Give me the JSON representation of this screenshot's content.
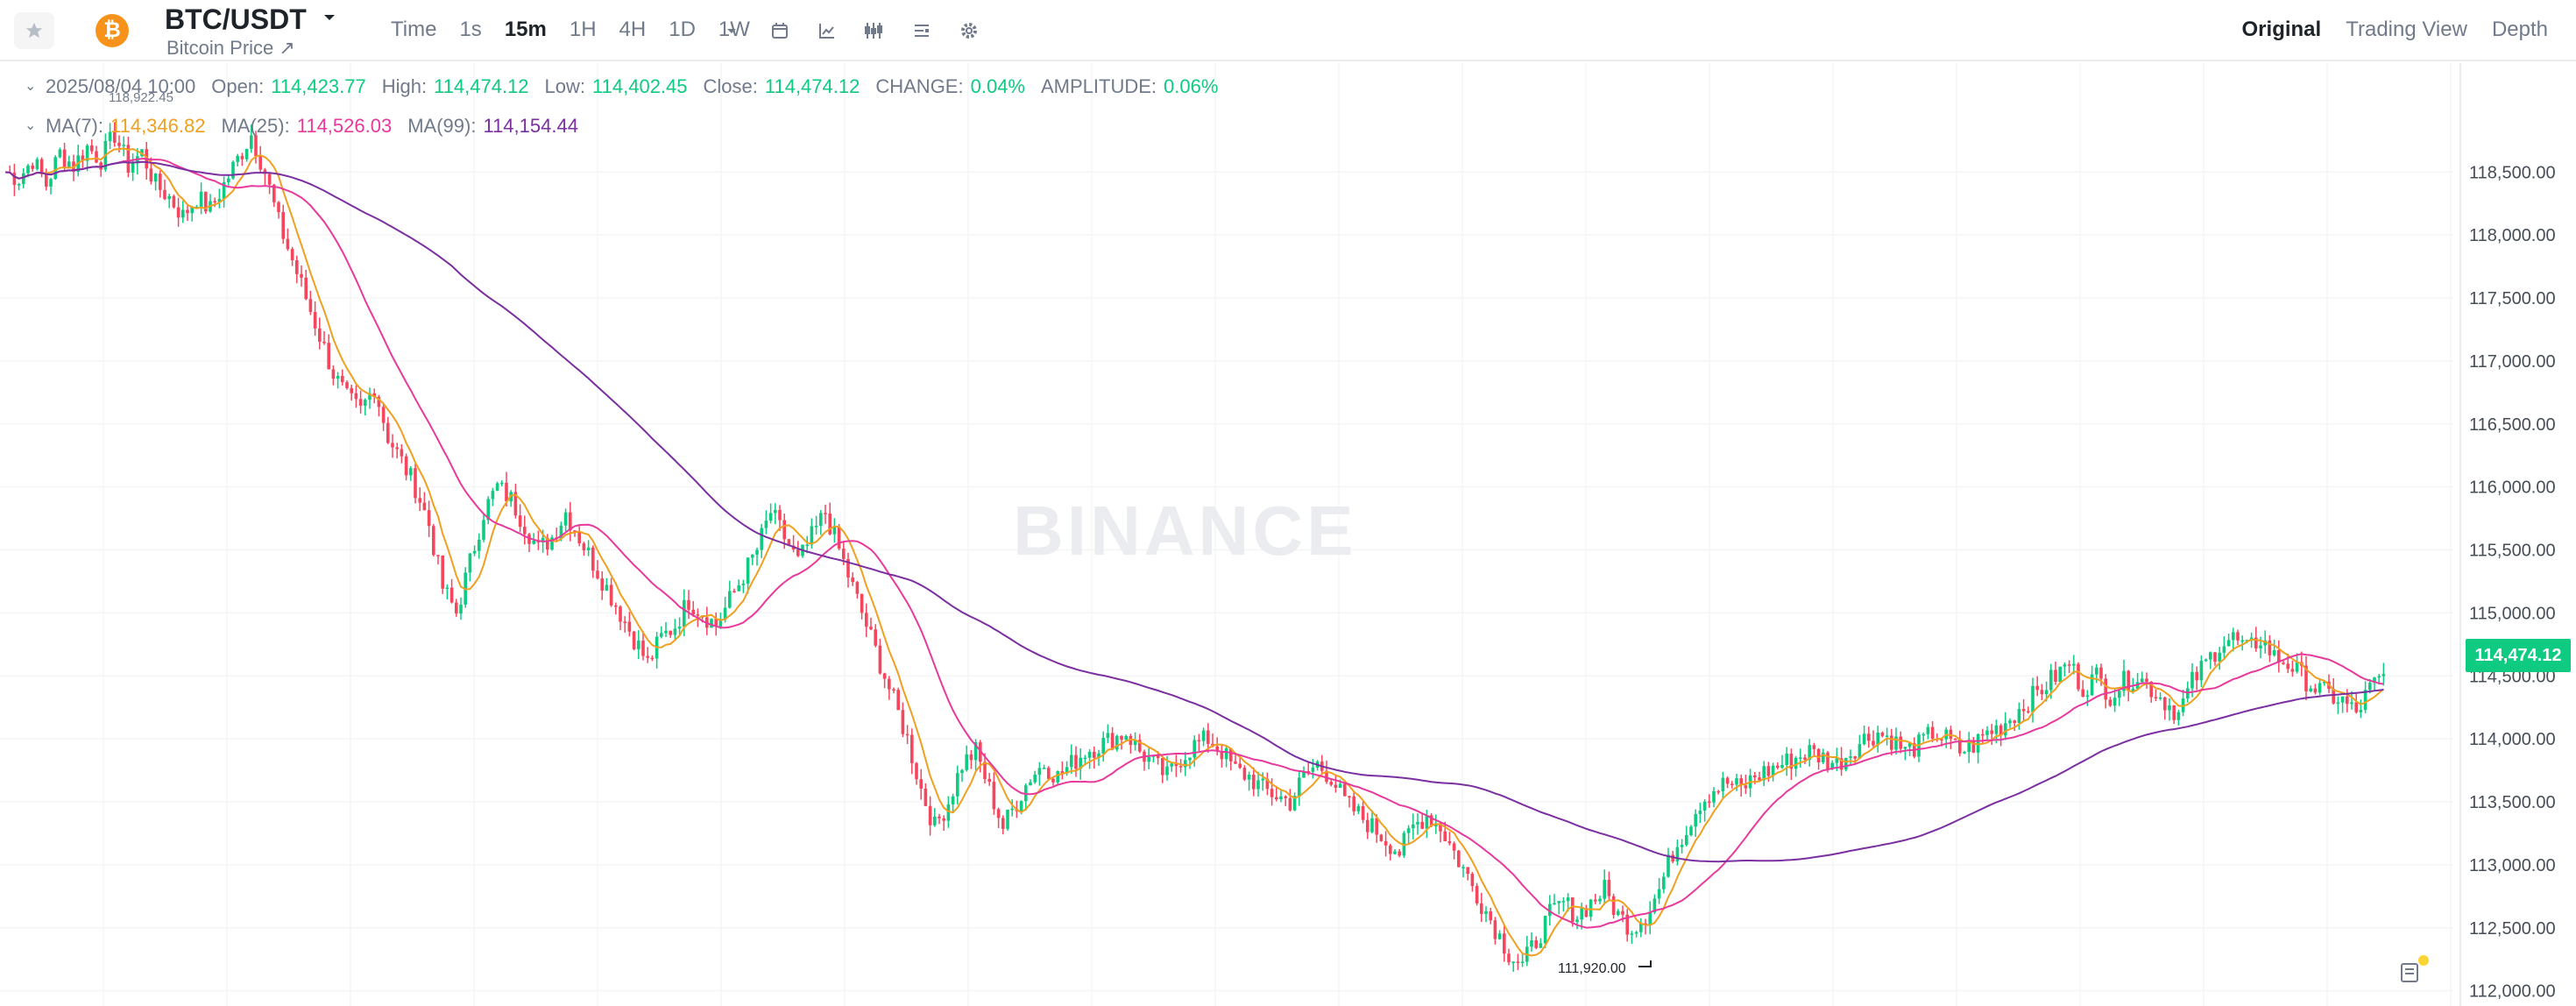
{
  "header": {
    "pair": "BTC/USDT",
    "subtitle": "Bitcoin Price ↗",
    "intervals": [
      "Time",
      "1s",
      "15m",
      "1H",
      "4H",
      "1D",
      "1W"
    ],
    "active_interval": "15m",
    "tool_icons": [
      "dropdown-caret-icon",
      "calendar-icon",
      "indicator-icon",
      "candle-type-icon",
      "layout-icon",
      "settings-icon"
    ],
    "views": [
      "Original",
      "Trading View",
      "Depth"
    ],
    "active_view": "Original"
  },
  "ohlc": {
    "time": "2025/08/04 10:00",
    "open_label": "Open:",
    "open": "114,423.77",
    "high_label": "High:",
    "high": "114,474.12",
    "low_label": "Low:",
    "low": "114,402.45",
    "close_label": "Close:",
    "close": "114,474.12",
    "change_label": "CHANGE:",
    "change": "0.04%",
    "amplitude_label": "AMPLITUDE:",
    "amplitude": "0.06%"
  },
  "ma": {
    "ma7_label": "MA(7):",
    "ma7": "114,346.82",
    "ma25_label": "MA(25):",
    "ma25": "114,526.03",
    "ma99_label": "MA(99):",
    "ma99": "114,154.44"
  },
  "watermark": "BINANCE",
  "current_price": "114,474.12",
  "high_marker": "118,922.45",
  "low_marker": "111,920.00",
  "colors": {
    "up": "#0ecb81",
    "down": "#f6465d",
    "ma7": "#f0a020",
    "ma25": "#e8399c",
    "ma99": "#7b2fa0",
    "coin": "#f7931a"
  },
  "chart_data": {
    "type": "candlestick",
    "ylim": [
      111900,
      119100
    ],
    "y_ticks": [
      118500,
      118000,
      117500,
      117000,
      116500,
      116000,
      115500,
      115000,
      114500,
      114000,
      113500,
      113000,
      112500,
      112000
    ],
    "y_tick_labels": [
      "118,500.00",
      "118,000.00",
      "117,500.00",
      "117,000.00",
      "116,500.00",
      "116,000.00",
      "115,500.00",
      "115,000.00",
      "114,500.00",
      "114,000.00",
      "113,500.00",
      "113,000.00",
      "112,500.00",
      "112,000.00"
    ],
    "close_path": [
      118500,
      118450,
      118600,
      118400,
      118650,
      118550,
      118700,
      118600,
      118800,
      118550,
      118650,
      118400,
      118300,
      118150,
      118300,
      118200,
      118400,
      118600,
      118800,
      118500,
      118100,
      117800,
      117500,
      117200,
      116900,
      116700,
      116600,
      116800,
      116400,
      116200,
      116000,
      115700,
      115200,
      115000,
      115400,
      115800,
      116000,
      115900,
      115700,
      115500,
      115600,
      115800,
      115600,
      115400,
      115200,
      115000,
      114800,
      114600,
      114800,
      114900,
      115100,
      115000,
      114900,
      115100,
      115300,
      115500,
      115800,
      115600,
      115400,
      115600,
      115800,
      115500,
      115200,
      114900,
      114600,
      114300,
      114000,
      113600,
      113300,
      113500,
      113800,
      113900,
      113600,
      113300,
      113500,
      113700,
      113800,
      113700,
      113800,
      113900,
      113950,
      114000,
      114050,
      113900,
      113800,
      113700,
      113850,
      113950,
      114000,
      113900,
      113750,
      113700,
      113600,
      113550,
      113500,
      113700,
      113800,
      113700,
      113500,
      113400,
      113300,
      113200,
      113100,
      113300,
      113400,
      113300,
      113100,
      112900,
      112700,
      112500,
      112300,
      112200,
      112400,
      112600,
      112700,
      112600,
      112700,
      112800,
      112600,
      112500,
      112600,
      112800,
      113100,
      113300,
      113500,
      113600,
      113650,
      113600,
      113700,
      113750,
      113800,
      113850,
      113900,
      113850,
      113800,
      113900,
      114000,
      114050,
      114000,
      113900,
      113950,
      114050,
      114000,
      113900,
      113950,
      114050,
      114100,
      114200,
      114300,
      114400,
      114500,
      114600,
      114400,
      114500,
      114350,
      114450,
      114500,
      114400,
      114300,
      114200,
      114450,
      114600,
      114750,
      114800,
      114700,
      114800,
      114650,
      114600,
      114500,
      114400,
      114350,
      114300,
      114200,
      114400,
      114480
    ]
  }
}
